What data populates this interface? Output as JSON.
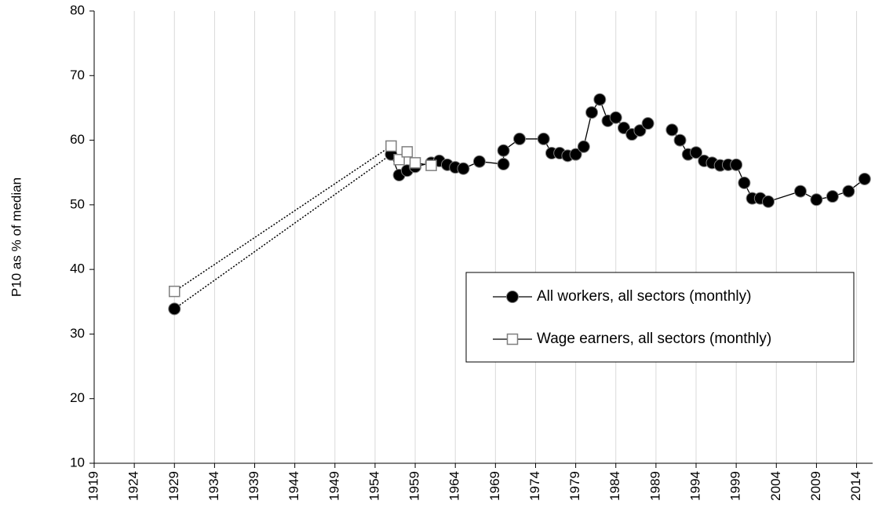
{
  "chart_data": {
    "type": "line",
    "y_label": "P10 as % of median",
    "xlim": [
      1919,
      2016
    ],
    "xticks": [
      1919,
      1924,
      1929,
      1934,
      1939,
      1944,
      1949,
      1954,
      1959,
      1964,
      1969,
      1974,
      1979,
      1984,
      1989,
      1994,
      1999,
      2004,
      2009,
      2014
    ],
    "ylim": [
      10,
      80
    ],
    "yticks": [
      10,
      20,
      30,
      40,
      50,
      60,
      70,
      80
    ],
    "grid": "vertical",
    "legend": "right",
    "dotted_first_segment": true,
    "series": [
      {
        "name": "All workers, all sectors (monthly)",
        "color": "#000000",
        "marker": "circle",
        "x": [
          1929,
          1956,
          1957,
          1958,
          1959,
          1961,
          1962,
          1963,
          1964,
          1965,
          1967,
          1970,
          1970,
          1972,
          1975,
          1976,
          1977,
          1978,
          1979,
          1980,
          1981,
          1982,
          1983,
          1984,
          1985,
          1986,
          1987,
          1988,
          null,
          1991,
          1992,
          1993,
          1994,
          1995,
          1996,
          1997,
          1998,
          1999,
          2000,
          2001,
          2002,
          2003,
          2007,
          2009,
          2011,
          2013,
          2015
        ],
        "values": [
          33.9,
          57.8,
          54.6,
          55.3,
          55.9,
          56.5,
          56.8,
          56.2,
          55.8,
          55.6,
          56.7,
          56.3,
          58.4,
          60.2,
          60.2,
          58,
          58,
          57.6,
          57.8,
          59,
          64.3,
          66.3,
          63,
          63.5,
          61.9,
          60.9,
          61.5,
          62.6,
          null,
          61.6,
          60,
          57.8,
          58.1,
          56.8,
          56.5,
          56.1,
          56.2,
          56.2,
          53.4,
          51,
          51,
          50.5,
          52.1,
          50.8,
          51.3,
          52.1,
          54
        ]
      },
      {
        "name": "Wage earners, all sectors (monthly)",
        "color": "#ffffff",
        "marker": "square",
        "x": [
          1929,
          1956,
          1957,
          1958,
          1959,
          1961
        ],
        "values": [
          36.6,
          59.1,
          57,
          58.2,
          56.5,
          56.1
        ]
      }
    ]
  }
}
